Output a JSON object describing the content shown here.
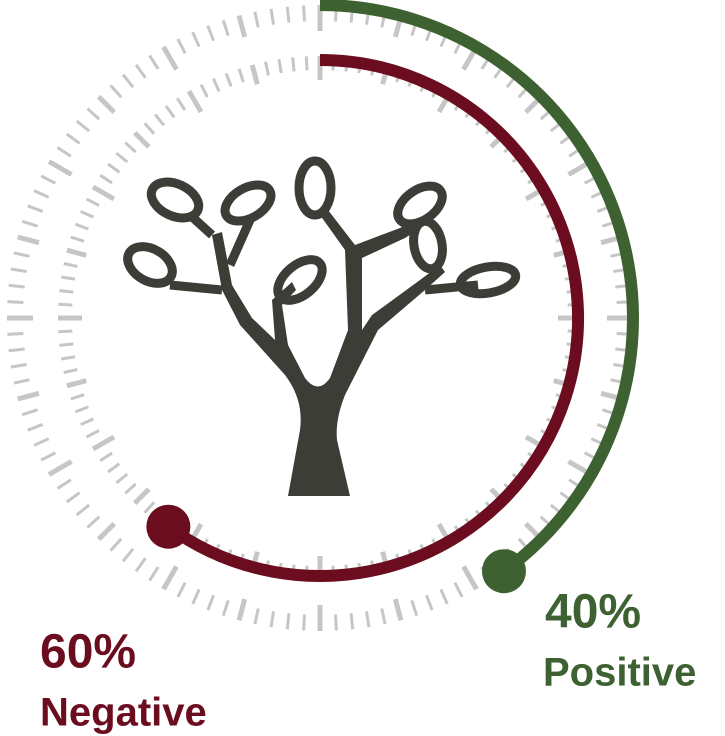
{
  "chart_data": {
    "type": "radial",
    "ylim": [
      0,
      100
    ],
    "series": [
      {
        "name": "Positive",
        "color": "#3d6130",
        "values": [
          40
        ],
        "value_labels": [
          "40%"
        ]
      },
      {
        "name": "Negative",
        "color": "#6b0d1f",
        "values": [
          60
        ],
        "value_labels": [
          "60%"
        ]
      }
    ]
  }
}
